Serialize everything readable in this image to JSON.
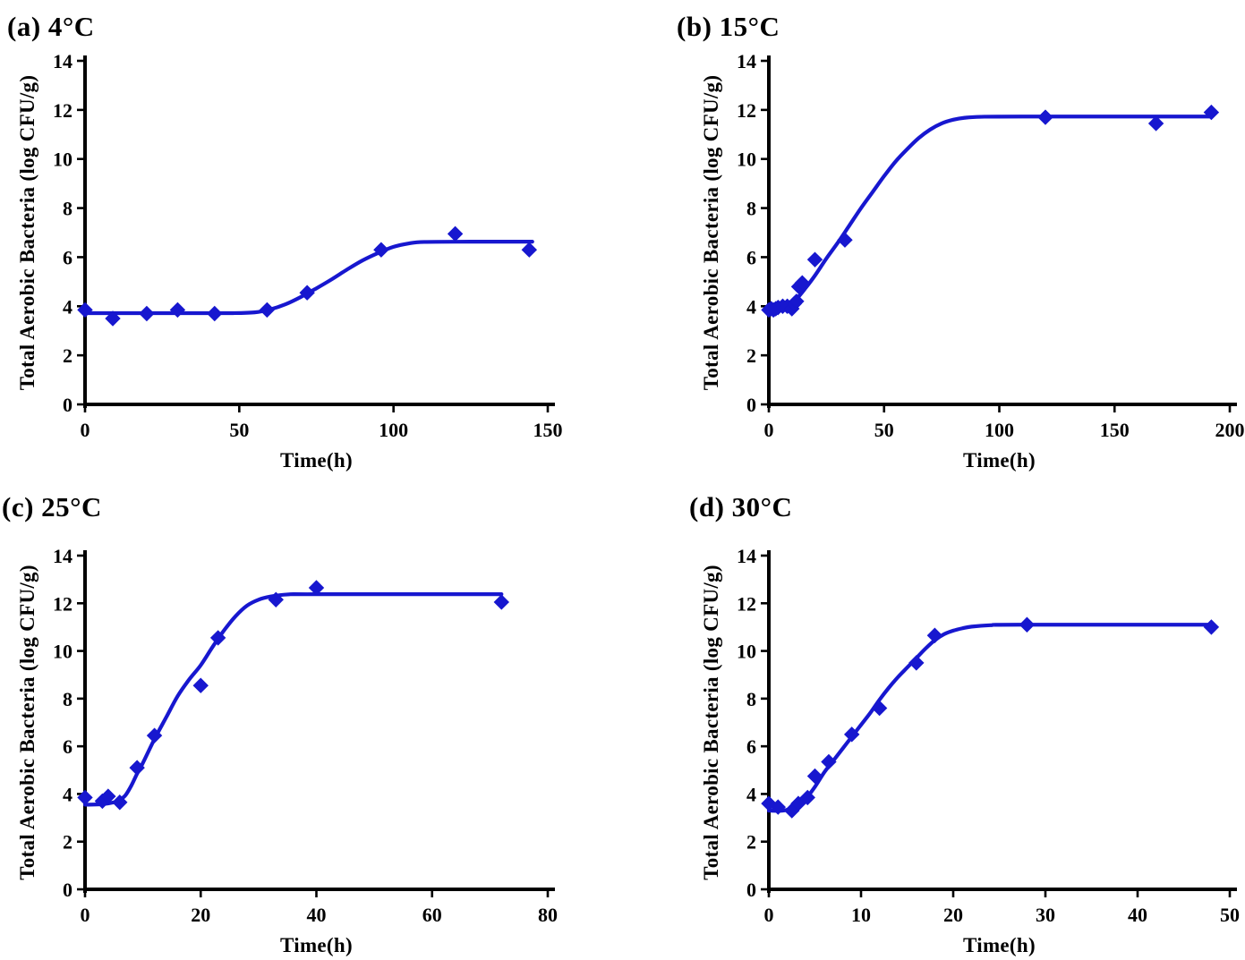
{
  "styles": {
    "accent_color": "#1717cf",
    "axis_color": "#000000",
    "background_color": "#ffffff",
    "marker": "diamond"
  },
  "chart_data": [
    {
      "id": "a",
      "type": "scatter",
      "title": "(a) 4°C",
      "xlabel": "Time(h)",
      "ylabel": "Total Aerobic Bacteria (log CFU/g)",
      "xlim": [
        0,
        150
      ],
      "ylim": [
        0,
        14
      ],
      "xticks": [
        0,
        50,
        100,
        150
      ],
      "yticks": [
        0,
        2,
        4,
        6,
        8,
        10,
        12,
        14
      ],
      "grid": false,
      "legend": "none",
      "points": [
        [
          0,
          3.85
        ],
        [
          9,
          3.5
        ],
        [
          20,
          3.7
        ],
        [
          30,
          3.85
        ],
        [
          42,
          3.7
        ],
        [
          59,
          3.85
        ],
        [
          72,
          4.55
        ],
        [
          96,
          6.3
        ],
        [
          120,
          6.95
        ],
        [
          144,
          6.3
        ]
      ],
      "fit_curve": [
        [
          0,
          3.72
        ],
        [
          30,
          3.72
        ],
        [
          48,
          3.72
        ],
        [
          55,
          3.75
        ],
        [
          60,
          3.87
        ],
        [
          65,
          4.08
        ],
        [
          70,
          4.38
        ],
        [
          75,
          4.73
        ],
        [
          80,
          5.1
        ],
        [
          85,
          5.5
        ],
        [
          90,
          5.87
        ],
        [
          95,
          6.17
        ],
        [
          100,
          6.42
        ],
        [
          105,
          6.56
        ],
        [
          110,
          6.62
        ],
        [
          125,
          6.63
        ],
        [
          145,
          6.63
        ]
      ]
    },
    {
      "id": "b",
      "type": "scatter",
      "title": "(b) 15°C",
      "xlabel": "Time(h)",
      "ylabel": "Total Aerobic Bacteria (log CFU/g)",
      "xlim": [
        0,
        200
      ],
      "ylim": [
        0,
        14
      ],
      "xticks": [
        0,
        50,
        100,
        150,
        200
      ],
      "yticks": [
        0,
        2,
        4,
        6,
        8,
        10,
        12,
        14
      ],
      "grid": false,
      "legend": "none",
      "points": [
        [
          0,
          3.85
        ],
        [
          1,
          3.9
        ],
        [
          2,
          3.85
        ],
        [
          3,
          3.9
        ],
        [
          4,
          3.95
        ],
        [
          6,
          4.0
        ],
        [
          8,
          4.0
        ],
        [
          10,
          3.9
        ],
        [
          11,
          4.1
        ],
        [
          12,
          4.2
        ],
        [
          13,
          4.8
        ],
        [
          14.5,
          4.95
        ],
        [
          20,
          5.9
        ],
        [
          33,
          6.7
        ],
        [
          120,
          11.7
        ],
        [
          168,
          11.45
        ],
        [
          192,
          11.9
        ]
      ],
      "fit_curve": [
        [
          0,
          3.8
        ],
        [
          4,
          3.85
        ],
        [
          8,
          4.0
        ],
        [
          12,
          4.3
        ],
        [
          16,
          4.75
        ],
        [
          20,
          5.25
        ],
        [
          25,
          5.95
        ],
        [
          30,
          6.6
        ],
        [
          35,
          7.3
        ],
        [
          40,
          8.0
        ],
        [
          45,
          8.65
        ],
        [
          50,
          9.3
        ],
        [
          55,
          9.9
        ],
        [
          60,
          10.4
        ],
        [
          65,
          10.85
        ],
        [
          70,
          11.2
        ],
        [
          75,
          11.45
        ],
        [
          80,
          11.6
        ],
        [
          85,
          11.68
        ],
        [
          92,
          11.72
        ],
        [
          110,
          11.73
        ],
        [
          192,
          11.73
        ]
      ]
    },
    {
      "id": "c",
      "type": "scatter",
      "title": "(c) 25°C",
      "xlabel": "Time(h)",
      "ylabel": "Total Aerobic Bacteria (log CFU/g)",
      "xlim": [
        0,
        80
      ],
      "ylim": [
        0,
        14
      ],
      "xticks": [
        0,
        20,
        40,
        60,
        80
      ],
      "yticks": [
        0,
        2,
        4,
        6,
        8,
        10,
        12,
        14
      ],
      "grid": false,
      "legend": "none",
      "points": [
        [
          0,
          3.85
        ],
        [
          3,
          3.7
        ],
        [
          4,
          3.9
        ],
        [
          6,
          3.65
        ],
        [
          9,
          5.1
        ],
        [
          12,
          6.45
        ],
        [
          20,
          8.55
        ],
        [
          23,
          10.55
        ],
        [
          33,
          12.15
        ],
        [
          40,
          12.65
        ],
        [
          72,
          12.05
        ]
      ],
      "fit_curve": [
        [
          0,
          3.55
        ],
        [
          3,
          3.57
        ],
        [
          5,
          3.65
        ],
        [
          6,
          3.75
        ],
        [
          7,
          3.95
        ],
        [
          8,
          4.35
        ],
        [
          9,
          4.85
        ],
        [
          10,
          5.3
        ],
        [
          12,
          6.3
        ],
        [
          14,
          7.2
        ],
        [
          16,
          8.1
        ],
        [
          18,
          8.8
        ],
        [
          20,
          9.4
        ],
        [
          22,
          10.15
        ],
        [
          24,
          10.85
        ],
        [
          26,
          11.45
        ],
        [
          28,
          11.9
        ],
        [
          30,
          12.15
        ],
        [
          32,
          12.28
        ],
        [
          35,
          12.37
        ],
        [
          40,
          12.38
        ],
        [
          72,
          12.38
        ]
      ]
    },
    {
      "id": "d",
      "type": "scatter",
      "title": "(d) 30°C",
      "xlabel": "Time(h)",
      "ylabel": "Total Aerobic Bacteria (log CFU/g)",
      "xlim": [
        0,
        50
      ],
      "ylim": [
        0,
        14
      ],
      "xticks": [
        0,
        10,
        20,
        30,
        40,
        50
      ],
      "yticks": [
        0,
        2,
        4,
        6,
        8,
        10,
        12,
        14
      ],
      "grid": false,
      "legend": "none",
      "points": [
        [
          0,
          3.6
        ],
        [
          1,
          3.45
        ],
        [
          2.5,
          3.3
        ],
        [
          3.2,
          3.6
        ],
        [
          4.2,
          3.85
        ],
        [
          5,
          4.75
        ],
        [
          6.5,
          5.35
        ],
        [
          9,
          6.5
        ],
        [
          12,
          7.6
        ],
        [
          16,
          9.5
        ],
        [
          18,
          10.65
        ],
        [
          28,
          11.1
        ],
        [
          48,
          11.0
        ]
      ],
      "fit_curve": [
        [
          0,
          3.3
        ],
        [
          1.5,
          3.3
        ],
        [
          2.5,
          3.4
        ],
        [
          3,
          3.5
        ],
        [
          4,
          3.8
        ],
        [
          5,
          4.3
        ],
        [
          6,
          4.9
        ],
        [
          7,
          5.4
        ],
        [
          8,
          5.9
        ],
        [
          9,
          6.4
        ],
        [
          10,
          6.9
        ],
        [
          11,
          7.4
        ],
        [
          12,
          7.95
        ],
        [
          13,
          8.45
        ],
        [
          14,
          8.9
        ],
        [
          15,
          9.3
        ],
        [
          16,
          9.7
        ],
        [
          17,
          10.1
        ],
        [
          18,
          10.45
        ],
        [
          19,
          10.7
        ],
        [
          20,
          10.85
        ],
        [
          21,
          10.95
        ],
        [
          22,
          11.02
        ],
        [
          24,
          11.08
        ],
        [
          27,
          11.1
        ],
        [
          48,
          11.1
        ]
      ]
    }
  ]
}
